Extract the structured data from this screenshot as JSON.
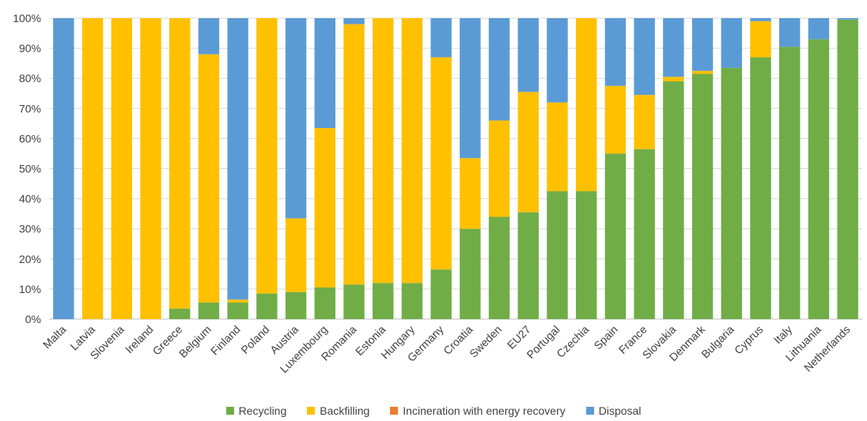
{
  "chart_data": {
    "type": "bar",
    "stacked": true,
    "title": "",
    "xlabel": "",
    "ylabel": "",
    "ylim": [
      0,
      100
    ],
    "y_ticks": [
      "0%",
      "10%",
      "20%",
      "30%",
      "40%",
      "50%",
      "60%",
      "70%",
      "80%",
      "90%",
      "100%"
    ],
    "grid": true,
    "legend_position": "bottom",
    "categories": [
      "Malta",
      "Latvia",
      "Slovenia",
      "Ireland",
      "Greece",
      "Belgium",
      "Finland",
      "Poland",
      "Austria",
      "Luxembourg",
      "Romania",
      "Estonia",
      "Hungary",
      "Germany",
      "Croatia",
      "Sweden",
      "EU27",
      "Portugal",
      "Czechia",
      "Spain",
      "France",
      "Slovakia",
      "Denmark",
      "Bulgaria",
      "Cyprus",
      "Italy",
      "Lithuania",
      "Netherlands"
    ],
    "series": [
      {
        "name": "Recycling",
        "color": "#70AD47",
        "values": [
          0,
          0,
          0,
          0,
          3.5,
          5.5,
          5.5,
          8.5,
          9,
          10.5,
          11.5,
          12,
          12,
          16.5,
          30,
          34,
          35.5,
          42.5,
          42.5,
          55,
          56.5,
          79,
          81.5,
          83.5,
          87,
          90.5,
          93,
          99.5
        ]
      },
      {
        "name": "Backfilling",
        "color": "#FFC000",
        "values": [
          0,
          100,
          100,
          100,
          96.5,
          82.5,
          1,
          91.5,
          24.5,
          53,
          86.5,
          88,
          88,
          70.5,
          23.5,
          32,
          40,
          29.5,
          57.5,
          22.5,
          18,
          1.5,
          1,
          0,
          12,
          0,
          0,
          0
        ]
      },
      {
        "name": "Incineration with energy recovery",
        "color": "#ED7D31",
        "values": [
          0,
          0,
          0,
          0,
          0,
          0,
          0,
          0,
          0,
          0,
          0,
          0,
          0,
          0,
          0,
          0,
          0,
          0,
          0,
          0,
          0,
          0,
          0,
          0,
          0,
          0,
          0,
          0
        ]
      },
      {
        "name": "Disposal",
        "color": "#5B9BD5",
        "values": [
          100,
          0,
          0,
          0,
          0,
          12,
          93.5,
          0,
          66.5,
          36.5,
          2,
          0,
          0,
          13,
          46.5,
          34,
          24.5,
          28,
          0,
          22.5,
          25.5,
          19.5,
          17.5,
          16.5,
          1,
          9.5,
          7,
          0.5
        ]
      }
    ]
  },
  "legend": {
    "items": [
      {
        "label": "Recycling",
        "color": "#70AD47"
      },
      {
        "label": "Backfilling",
        "color": "#FFC000"
      },
      {
        "label": "Incineration with energy recovery",
        "color": "#ED7D31"
      },
      {
        "label": "Disposal",
        "color": "#5B9BD5"
      }
    ]
  }
}
